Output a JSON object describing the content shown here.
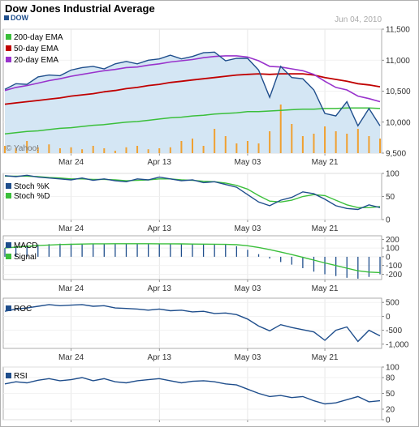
{
  "title": "Dow Jones Industrial Average",
  "date": "Jun 04, 2010",
  "watermark": "© Yahoo!",
  "x_ticks": [
    "Mar 24",
    "Apr 13",
    "May 03",
    "May 21"
  ],
  "colors": {
    "price": "#1f4e8c",
    "ema200": "#3bbf3b",
    "ema50": "#c00000",
    "ema20": "#9933cc",
    "volume": "#f0a030",
    "area": "#d4e6f4",
    "macd": "#1f4e8c",
    "signal": "#3bbf3b"
  },
  "chart_data": [
    {
      "type": "line",
      "panel": "price",
      "x": [
        "Mar 10",
        "Mar 12",
        "Mar 15",
        "Mar 17",
        "Mar 19",
        "Mar 22",
        "Mar 24",
        "Mar 26",
        "Mar 29",
        "Mar 31",
        "Apr 02",
        "Apr 05",
        "Apr 07",
        "Apr 09",
        "Apr 13",
        "Apr 15",
        "Apr 19",
        "Apr 21",
        "Apr 23",
        "Apr 26",
        "Apr 28",
        "Apr 30",
        "May 03",
        "May 05",
        "May 07",
        "May 11",
        "May 13",
        "May 17",
        "May 19",
        "May 21",
        "May 25",
        "May 27",
        "Jun 01",
        "Jun 03",
        "Jun 04"
      ],
      "ylim": [
        9500,
        11500
      ],
      "y_ticks": [
        "11,500",
        "11,000",
        "10,500",
        "10,000",
        "9,500"
      ],
      "series": [
        {
          "name": "DOW",
          "values": [
            10530,
            10620,
            10610,
            10730,
            10760,
            10750,
            10840,
            10880,
            10900,
            10860,
            10940,
            10980,
            10940,
            11000,
            11020,
            11080,
            11020,
            11060,
            11120,
            11130,
            10990,
            11030,
            11030,
            10840,
            10400,
            10900,
            10720,
            10700,
            10520,
            10140,
            10100,
            10330,
            9940,
            10220,
            9940
          ]
        },
        {
          "name": "200-day EMA",
          "values": [
            9810,
            9830,
            9850,
            9860,
            9880,
            9900,
            9910,
            9930,
            9950,
            9960,
            9980,
            10000,
            10010,
            10030,
            10050,
            10070,
            10080,
            10100,
            10110,
            10130,
            10140,
            10150,
            10170,
            10170,
            10180,
            10190,
            10200,
            10210,
            10210,
            10220,
            10220,
            10230,
            10230,
            10230,
            10220
          ]
        },
        {
          "name": "50-day EMA",
          "values": [
            10290,
            10310,
            10330,
            10350,
            10370,
            10390,
            10420,
            10440,
            10460,
            10490,
            10510,
            10540,
            10560,
            10590,
            10610,
            10640,
            10660,
            10680,
            10700,
            10720,
            10740,
            10760,
            10770,
            10780,
            10770,
            10780,
            10780,
            10780,
            10760,
            10720,
            10690,
            10660,
            10620,
            10600,
            10570
          ]
        },
        {
          "name": "20-day EMA",
          "values": [
            10510,
            10560,
            10590,
            10630,
            10670,
            10700,
            10740,
            10770,
            10800,
            10830,
            10850,
            10880,
            10890,
            10920,
            10940,
            10970,
            10990,
            11010,
            11040,
            11060,
            11070,
            11070,
            11050,
            10990,
            10900,
            10890,
            10860,
            10830,
            10770,
            10660,
            10560,
            10520,
            10420,
            10380,
            10330
          ]
        }
      ]
    },
    {
      "type": "bar",
      "panel": "volume",
      "x": [
        "Mar 10",
        "Mar 12",
        "Mar 15",
        "Mar 17",
        "Mar 19",
        "Mar 22",
        "Mar 24",
        "Mar 26",
        "Mar 29",
        "Mar 31",
        "Apr 02",
        "Apr 05",
        "Apr 07",
        "Apr 09",
        "Apr 13",
        "Apr 15",
        "Apr 19",
        "Apr 21",
        "Apr 23",
        "Apr 26",
        "Apr 28",
        "Apr 30",
        "May 03",
        "May 05",
        "May 07",
        "May 11",
        "May 13",
        "May 17",
        "May 19",
        "May 21",
        "May 25",
        "May 27",
        "Jun 01",
        "Jun 03",
        "Jun 04"
      ],
      "values": [
        0.15,
        0.1,
        0.25,
        0.12,
        0.18,
        0.1,
        0.12,
        0.08,
        0.15,
        0.1,
        0.05,
        0.12,
        0.15,
        0.08,
        0.1,
        0.12,
        0.25,
        0.3,
        0.15,
        0.5,
        0.35,
        0.2,
        0.25,
        0.2,
        0.45,
        1.0,
        0.6,
        0.35,
        0.4,
        0.55,
        0.45,
        0.4,
        0.5,
        0.35,
        0.3
      ]
    },
    {
      "type": "line",
      "panel": "stochastic",
      "x": [
        "Mar 10",
        "Mar 12",
        "Mar 15",
        "Mar 17",
        "Mar 19",
        "Mar 22",
        "Mar 24",
        "Mar 26",
        "Mar 29",
        "Mar 31",
        "Apr 02",
        "Apr 05",
        "Apr 07",
        "Apr 09",
        "Apr 13",
        "Apr 15",
        "Apr 19",
        "Apr 21",
        "Apr 23",
        "Apr 26",
        "Apr 28",
        "Apr 30",
        "May 03",
        "May 05",
        "May 07",
        "May 11",
        "May 13",
        "May 17",
        "May 19",
        "May 21",
        "May 25",
        "May 27",
        "Jun 01",
        "Jun 03",
        "Jun 04"
      ],
      "ylim": [
        0,
        100
      ],
      "y_ticks": [
        "100",
        "50",
        "0"
      ],
      "series": [
        {
          "name": "Stoch %K",
          "values": [
            95,
            93,
            96,
            92,
            90,
            88,
            86,
            90,
            85,
            88,
            84,
            82,
            88,
            86,
            92,
            88,
            84,
            86,
            80,
            82,
            76,
            70,
            54,
            38,
            30,
            42,
            48,
            60,
            56,
            44,
            30,
            24,
            22,
            32,
            26
          ]
        },
        {
          "name": "Stoch %D",
          "values": [
            94,
            94,
            94,
            93,
            91,
            90,
            88,
            88,
            87,
            87,
            86,
            84,
            85,
            86,
            88,
            88,
            86,
            85,
            83,
            82,
            79,
            74,
            66,
            52,
            40,
            38,
            42,
            50,
            54,
            52,
            42,
            32,
            26,
            26,
            28
          ]
        }
      ]
    },
    {
      "type": "bar",
      "panel": "macd",
      "x": [
        "Mar 10",
        "Mar 12",
        "Mar 15",
        "Mar 17",
        "Mar 19",
        "Mar 22",
        "Mar 24",
        "Mar 26",
        "Mar 29",
        "Mar 31",
        "Apr 02",
        "Apr 05",
        "Apr 07",
        "Apr 09",
        "Apr 13",
        "Apr 15",
        "Apr 19",
        "Apr 21",
        "Apr 23",
        "Apr 26",
        "Apr 28",
        "Apr 30",
        "May 03",
        "May 05",
        "May 07",
        "May 11",
        "May 13",
        "May 17",
        "May 19",
        "May 21",
        "May 25",
        "May 27",
        "Jun 01",
        "Jun 03",
        "Jun 04"
      ],
      "ylim": [
        -260,
        240
      ],
      "y_ticks": [
        "200",
        "100",
        "0",
        "-100",
        "-200"
      ],
      "series": [
        {
          "name": "MACD",
          "values": [
            100,
            120,
            130,
            140,
            145,
            150,
            150,
            152,
            152,
            150,
            150,
            150,
            150,
            148,
            148,
            148,
            145,
            145,
            142,
            140,
            138,
            120,
            80,
            30,
            -20,
            -60,
            -90,
            -130,
            -170,
            -200,
            -220,
            -240,
            -250,
            -230,
            -200
          ]
        },
        {
          "name": "Signal",
          "values": [
            100,
            110,
            120,
            128,
            134,
            140,
            143,
            146,
            148,
            148,
            149,
            149,
            149,
            149,
            148,
            148,
            147,
            146,
            145,
            144,
            142,
            138,
            126,
            107,
            82,
            54,
            25,
            -6,
            -38,
            -70,
            -100,
            -130,
            -160,
            -175,
            -180
          ]
        }
      ]
    },
    {
      "type": "line",
      "panel": "roc",
      "x": [
        "Mar 10",
        "Mar 12",
        "Mar 15",
        "Mar 17",
        "Mar 19",
        "Mar 22",
        "Mar 24",
        "Mar 26",
        "Mar 29",
        "Mar 31",
        "Apr 02",
        "Apr 05",
        "Apr 07",
        "Apr 09",
        "Apr 13",
        "Apr 15",
        "Apr 19",
        "Apr 21",
        "Apr 23",
        "Apr 26",
        "Apr 28",
        "Apr 30",
        "May 03",
        "May 05",
        "May 07",
        "May 11",
        "May 13",
        "May 17",
        "May 19",
        "May 21",
        "May 25",
        "May 27",
        "Jun 01",
        "Jun 03",
        "Jun 04"
      ],
      "ylim": [
        -1150,
        650
      ],
      "y_ticks": [
        "500",
        "0",
        "-500",
        "-1,000"
      ],
      "series": [
        {
          "name": "ROC",
          "values": [
            180,
            260,
            300,
            360,
            420,
            380,
            400,
            420,
            360,
            380,
            300,
            280,
            260,
            220,
            260,
            200,
            220,
            160,
            180,
            100,
            120,
            60,
            -100,
            -350,
            -520,
            -300,
            -400,
            -480,
            -560,
            -860,
            -500,
            -380,
            -900,
            -500,
            -700
          ]
        }
      ]
    },
    {
      "type": "line",
      "panel": "rsi",
      "x": [
        "Mar 10",
        "Mar 12",
        "Mar 15",
        "Mar 17",
        "Mar 19",
        "Mar 22",
        "Mar 24",
        "Mar 26",
        "Mar 29",
        "Mar 31",
        "Apr 02",
        "Apr 05",
        "Apr 07",
        "Apr 09",
        "Apr 13",
        "Apr 15",
        "Apr 19",
        "Apr 21",
        "Apr 23",
        "Apr 26",
        "Apr 28",
        "Apr 30",
        "May 03",
        "May 05",
        "May 07",
        "May 11",
        "May 13",
        "May 17",
        "May 19",
        "May 21",
        "May 25",
        "May 27",
        "Jun 01",
        "Jun 03",
        "Jun 04"
      ],
      "ylim": [
        0,
        100
      ],
      "y_ticks": [
        "100",
        "80",
        "50",
        "20",
        "0"
      ],
      "series": [
        {
          "name": "RSI",
          "values": [
            68,
            72,
            70,
            75,
            78,
            74,
            76,
            80,
            74,
            78,
            72,
            70,
            74,
            76,
            78,
            74,
            70,
            73,
            74,
            72,
            68,
            66,
            58,
            50,
            44,
            46,
            42,
            44,
            36,
            30,
            32,
            38,
            44,
            34,
            36
          ]
        }
      ]
    }
  ]
}
